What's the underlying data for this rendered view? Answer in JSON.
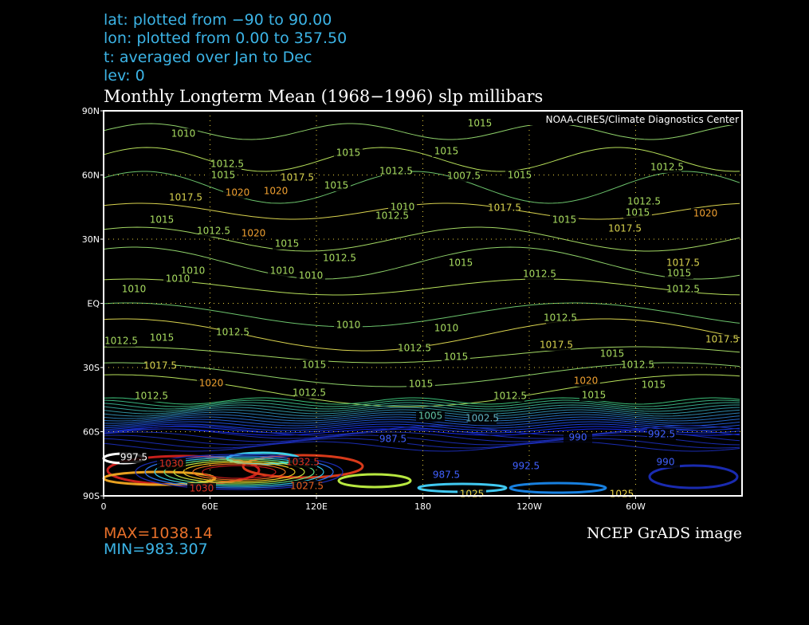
{
  "header": {
    "lines": [
      "lat: plotted from −90 to 90.00",
      "lon: plotted from 0.00 to 357.50",
      "t: averaged over Jan to Dec",
      "lev: 0"
    ],
    "title": "Monthly Longterm Mean (1968−1996) slp millibars"
  },
  "map": {
    "credit": "NOAA-CIRES/Climate Diagnostics Center",
    "lat_ticks": [
      {
        "value": 90,
        "label": "90N"
      },
      {
        "value": 60,
        "label": "60N"
      },
      {
        "value": 30,
        "label": "30N"
      },
      {
        "value": 0,
        "label": "EQ"
      },
      {
        "value": -30,
        "label": "30S"
      },
      {
        "value": -60,
        "label": "60S"
      },
      {
        "value": -90,
        "label": "90S"
      }
    ],
    "lon_ticks": [
      0,
      {
        "value": 60,
        "label": "60E"
      },
      {
        "value": 120,
        "label": "120E"
      },
      180,
      {
        "value": 240,
        "label": "120W"
      },
      {
        "value": 300,
        "label": "60W"
      }
    ],
    "contour_labels": [
      "1015",
      "1010",
      "1015",
      "1015",
      "1012.5",
      "1012.5",
      "1015",
      "1017.5",
      "1012.5",
      "1007.5",
      "1015",
      "1015",
      "1020",
      "1017.5",
      "1020",
      "1010",
      "1012.5",
      "1017.5",
      "1015",
      "1012.5",
      "1020",
      "1015",
      "1015",
      "1012.5",
      "1017.5",
      "1015",
      "1020",
      "1012.5",
      "1015",
      "1017.5",
      "1012.5",
      "1015",
      "1010",
      "1010",
      "1010",
      "1010",
      "1010",
      "1012.5",
      "1012.5",
      "1010",
      "1010",
      "1012.5",
      "1015",
      "1012.5",
      "1012.5",
      "1017.5",
      "1017.5",
      "1015",
      "1015",
      "1015",
      "1017.5",
      "1012.5",
      "1020",
      "1015",
      "1020",
      "1012.5",
      "1012.5",
      "1012.5",
      "1015",
      "1015",
      "1005",
      "1002.5",
      "987.5",
      "990",
      "992.5",
      "997.5",
      "1030",
      "1032.5",
      "1027.5",
      "1030",
      "990",
      "992.5",
      "987.5",
      "1025",
      "1025"
    ]
  },
  "footer": {
    "max": "MAX=1038.14",
    "min": "MIN=983.307",
    "image": "NCEP GrADS image"
  }
}
